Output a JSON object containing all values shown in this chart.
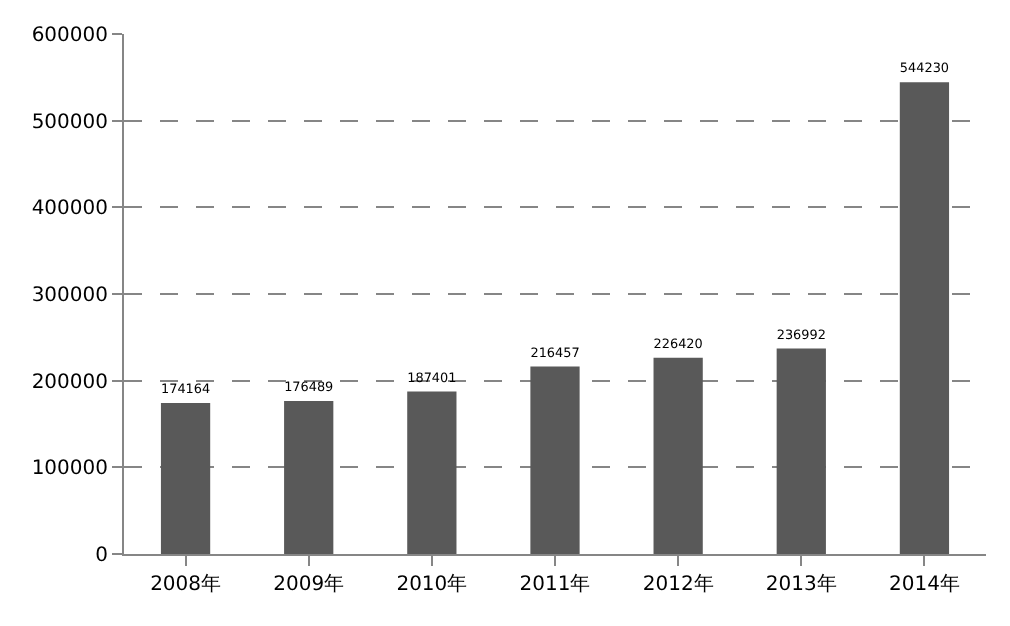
{
  "chart_data": {
    "type": "bar",
    "categories": [
      "2008年",
      "2009年",
      "2010年",
      "2011年",
      "2012年",
      "2013年",
      "2014年"
    ],
    "values": [
      174164,
      176489,
      187401,
      216457,
      226420,
      236992,
      544230
    ],
    "color": "#595959",
    "ylim": [
      0,
      600000
    ],
    "yticks": [
      0,
      100000,
      200000,
      300000,
      400000,
      500000,
      600000
    ],
    "grid": "y",
    "data_labels": true
  }
}
